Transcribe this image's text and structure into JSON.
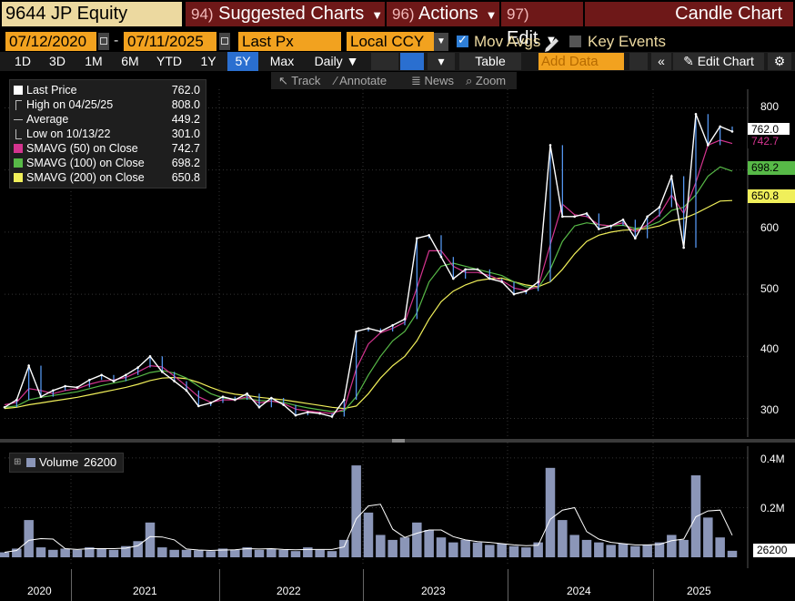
{
  "header": {
    "ticker": "9644 JP Equity",
    "menu": [
      {
        "num": "94)",
        "label": "Suggested Charts"
      },
      {
        "num": "96)",
        "label": "Actions"
      },
      {
        "num": "97)",
        "label": "Edit"
      }
    ],
    "chart_title": "Candle Chart"
  },
  "options": {
    "start_date": "07/12/2020",
    "end_date": "07/11/2025",
    "price_field": "Last Px",
    "currency": "Local CCY",
    "mov_avgs_label": "Mov Avgs",
    "mov_avgs_checked": true,
    "key_events_label": "Key Events",
    "key_events_checked": false
  },
  "toolbar": {
    "periods": [
      "1D",
      "3D",
      "1M",
      "6M",
      "YTD",
      "1Y",
      "5Y",
      "Max"
    ],
    "active_period": "5Y",
    "frequency": "Daily",
    "table_label": "Table",
    "add_data_placeholder": "Add Data",
    "edit_chart_label": "Edit Chart"
  },
  "tools": {
    "track": "Track",
    "annotate": "Annotate",
    "news": "News",
    "zoom": "Zoom"
  },
  "legend": [
    {
      "label": "Last Price",
      "value": "762.0",
      "color": "#ffffff"
    },
    {
      "label": "High on 04/25/25",
      "value": "808.0",
      "color": ""
    },
    {
      "label": "Average",
      "value": "449.2",
      "color": ""
    },
    {
      "label": "Low on 10/13/22",
      "value": "301.0",
      "color": ""
    },
    {
      "label": "SMAVG (50)  on Close",
      "value": "742.7",
      "color": "#d4348f"
    },
    {
      "label": "SMAVG (100)  on Close",
      "value": "698.2",
      "color": "#57b947"
    },
    {
      "label": "SMAVG (200)  on Close",
      "value": "650.8",
      "color": "#f0ef5a"
    }
  ],
  "volume_legend": {
    "label": "Volume",
    "value": "26200",
    "color": "#8b96b8"
  },
  "price_axis": {
    "ticks": [
      "800",
      "700",
      "600",
      "500",
      "400",
      "300"
    ]
  },
  "price_tags": [
    {
      "label": "762.0",
      "color": "#ffffff"
    },
    {
      "label": "742.7",
      "color": "#d4348f"
    },
    {
      "label": "698.2",
      "color": "#57b947"
    },
    {
      "label": "650.8",
      "color": "#f0ef5a"
    }
  ],
  "volume_axis": {
    "ticks": [
      "0.4M",
      "0.2M"
    ],
    "last_tag": "26200"
  },
  "x_axis": {
    "years": [
      "2020",
      "2021",
      "2022",
      "2023",
      "2024",
      "2025"
    ]
  },
  "chart_data": {
    "type": "line",
    "ylim": [
      270,
      830
    ],
    "volume_ylim": [
      0,
      440000
    ],
    "x": [
      "2020-07",
      "2020-08",
      "2020-09",
      "2020-10",
      "2020-11",
      "2020-12",
      "2021-01",
      "2021-02",
      "2021-03",
      "2021-04",
      "2021-05",
      "2021-06",
      "2021-07",
      "2021-08",
      "2021-09",
      "2021-10",
      "2021-11",
      "2021-12",
      "2022-01",
      "2022-02",
      "2022-03",
      "2022-04",
      "2022-05",
      "2022-06",
      "2022-07",
      "2022-08",
      "2022-09",
      "2022-10",
      "2022-11",
      "2022-12",
      "2023-01",
      "2023-02",
      "2023-03",
      "2023-04",
      "2023-05",
      "2023-06",
      "2023-07",
      "2023-08",
      "2023-09",
      "2023-10",
      "2023-11",
      "2023-12",
      "2024-01",
      "2024-02",
      "2024-03",
      "2024-04",
      "2024-05",
      "2024-06",
      "2024-07",
      "2024-08",
      "2024-09",
      "2024-10",
      "2024-11",
      "2024-12",
      "2025-01",
      "2025-02",
      "2025-03",
      "2025-04",
      "2025-05",
      "2025-06",
      "2025-07"
    ],
    "series": [
      {
        "name": "Last Price",
        "color": "#ffffff",
        "values": [
          318,
          330,
          385,
          335,
          345,
          352,
          350,
          362,
          370,
          360,
          370,
          382,
          400,
          375,
          360,
          345,
          320,
          325,
          335,
          330,
          340,
          318,
          333,
          322,
          305,
          310,
          308,
          303,
          330,
          440,
          445,
          440,
          450,
          460,
          590,
          595,
          560,
          525,
          540,
          540,
          525,
          520,
          500,
          505,
          520,
          740,
          625,
          625,
          630,
          605,
          610,
          620,
          590,
          625,
          640,
          690,
          575,
          790,
          740,
          770,
          762
        ]
      },
      {
        "name": "SMAVG (50)  on Close",
        "color": "#d4348f",
        "values": [
          322,
          326,
          348,
          345,
          340,
          345,
          348,
          355,
          360,
          362,
          366,
          375,
          385,
          383,
          368,
          352,
          335,
          326,
          330,
          330,
          335,
          325,
          328,
          324,
          315,
          312,
          310,
          308,
          315,
          380,
          420,
          438,
          445,
          455,
          510,
          570,
          570,
          545,
          535,
          535,
          530,
          522,
          510,
          506,
          512,
          580,
          645,
          628,
          625,
          612,
          610,
          615,
          600,
          612,
          628,
          660,
          630,
          680,
          740,
          748,
          742.7
        ]
      },
      {
        "name": "SMAVG (100)  on Close",
        "color": "#57b947",
        "values": [
          318,
          320,
          330,
          334,
          337,
          340,
          343,
          348,
          353,
          357,
          361,
          367,
          374,
          377,
          373,
          365,
          352,
          340,
          333,
          331,
          332,
          329,
          328,
          326,
          321,
          317,
          314,
          311,
          312,
          335,
          370,
          400,
          425,
          440,
          470,
          520,
          545,
          550,
          545,
          540,
          535,
          530,
          520,
          512,
          510,
          540,
          585,
          610,
          615,
          612,
          610,
          611,
          606,
          609,
          617,
          635,
          640,
          660,
          690,
          705,
          698.2
        ]
      },
      {
        "name": "SMAVG (200)  on Close",
        "color": "#f0ef5a",
        "values": [
          316,
          318,
          322,
          325,
          328,
          331,
          334,
          338,
          342,
          346,
          350,
          355,
          361,
          365,
          366,
          364,
          358,
          350,
          343,
          339,
          337,
          334,
          332,
          330,
          327,
          324,
          321,
          318,
          316,
          320,
          340,
          365,
          385,
          400,
          425,
          460,
          488,
          505,
          515,
          522,
          525,
          526,
          520,
          515,
          512,
          520,
          540,
          565,
          585,
          595,
          600,
          603,
          604,
          606,
          610,
          618,
          622,
          630,
          640,
          650,
          650.8
        ]
      }
    ],
    "volume": {
      "name": "Volume",
      "color": "#8b96b8",
      "values": [
        20000,
        35000,
        150000,
        40000,
        30000,
        35000,
        30000,
        40000,
        35000,
        30000,
        45000,
        65000,
        140000,
        40000,
        30000,
        30000,
        28000,
        25000,
        35000,
        30000,
        40000,
        30000,
        35000,
        30000,
        25000,
        40000,
        30000,
        25000,
        70000,
        370000,
        180000,
        90000,
        70000,
        80000,
        140000,
        110000,
        80000,
        60000,
        70000,
        60000,
        50000,
        55000,
        45000,
        40000,
        60000,
        360000,
        150000,
        90000,
        70000,
        60000,
        50000,
        55000,
        45000,
        50000,
        60000,
        90000,
        70000,
        330000,
        160000,
        80000,
        26200
      ]
    }
  }
}
